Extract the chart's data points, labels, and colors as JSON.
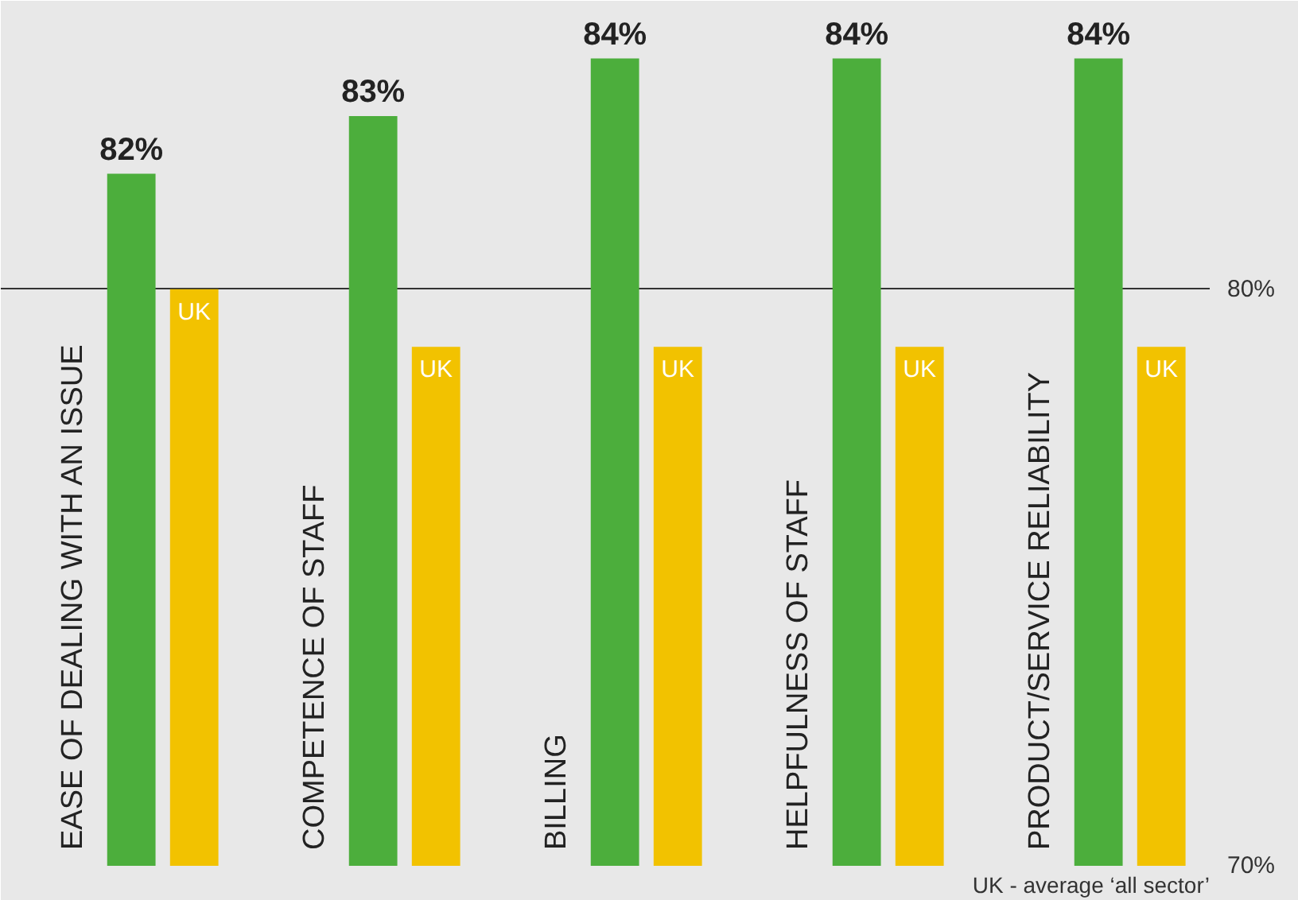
{
  "chart_data": {
    "type": "bar",
    "categories": [
      "EASE OF DEALING WITH AN ISSUE",
      "COMPETENCE OF STAFF",
      "BILLING",
      "HELPFULNESS OF STAFF",
      "PRODUCT/SERVICE RELIABILITY"
    ],
    "series": [
      {
        "color": "#4cae3c",
        "values": [
          82,
          83,
          84,
          84,
          84
        ],
        "value_labels": [
          "82%",
          "83%",
          "84%",
          "84%",
          "84%"
        ]
      },
      {
        "name": "UK",
        "color": "#f2c200",
        "values": [
          80,
          79,
          79,
          79,
          79
        ]
      }
    ],
    "ylim": [
      70,
      85
    ],
    "yticks": [
      {
        "value": 70,
        "label": "70%"
      },
      {
        "value": 80,
        "label": "80%"
      }
    ],
    "grid": "y",
    "annotations": [
      "UK - average ‘all sector’"
    ]
  }
}
